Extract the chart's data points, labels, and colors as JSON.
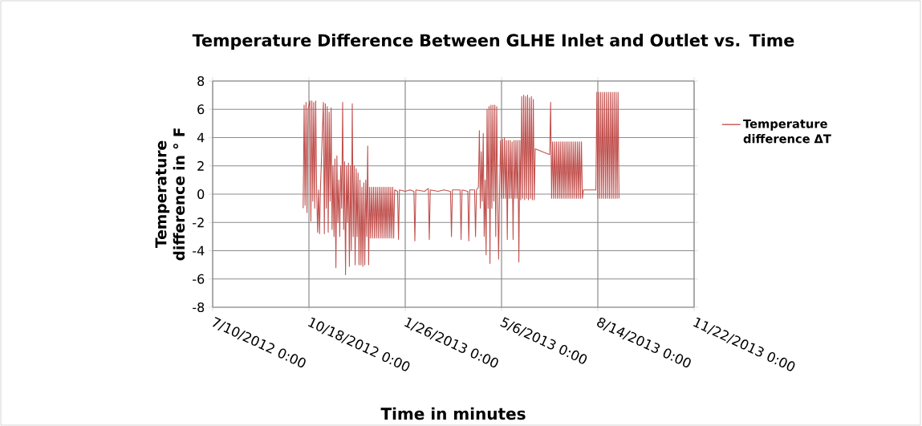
{
  "chart_data": {
    "type": "line",
    "title": "Temperature Difference Between GLHE Inlet and Outlet vs. Time",
    "xlabel": "Time in minutes",
    "ylabel": "Temperature difference in ° F",
    "xlim": [
      "2012-07-10",
      "2013-11-22"
    ],
    "xticks": [
      {
        "value": "2012-07-10",
        "label": "7/10/2012 0:00"
      },
      {
        "value": "2012-10-18",
        "label": "10/18/2012 0:00"
      },
      {
        "value": "2013-01-26",
        "label": "1/26/2013 0:00"
      },
      {
        "value": "2013-05-06",
        "label": "5/6/2013 0:00"
      },
      {
        "value": "2013-08-14",
        "label": "8/14/2013 0:00"
      },
      {
        "value": "2013-11-22",
        "label": "11/22/2013 0:00"
      }
    ],
    "ylim": [
      -8,
      8
    ],
    "yticks": [
      -8,
      -6,
      -4,
      -2,
      0,
      2,
      4,
      6,
      8
    ],
    "grid": true,
    "legend": "right",
    "marker": "none",
    "series": [
      {
        "name": "Temperature difference ΔT",
        "color": "#c0504d",
        "x": [
          "2012-10-12",
          "2012-10-13",
          "2012-10-14",
          "2012-10-15",
          "2012-10-16",
          "2012-10-17",
          "2012-10-19",
          "2012-10-20",
          "2012-10-21",
          "2012-10-22",
          "2012-10-23",
          "2012-10-24",
          "2012-10-25",
          "2012-10-26",
          "2012-10-27",
          "2012-10-28",
          "2012-10-29",
          "2012-10-30",
          "2012-11-02",
          "2012-11-03",
          "2012-11-04",
          "2012-11-05",
          "2012-11-06",
          "2012-11-07",
          "2012-11-08",
          "2012-11-09",
          "2012-11-10",
          "2012-11-11",
          "2012-11-12",
          "2012-11-13",
          "2012-11-14",
          "2012-11-15",
          "2012-11-16",
          "2012-11-17",
          "2012-11-18",
          "2012-11-19",
          "2012-11-20",
          "2012-11-21",
          "2012-11-22",
          "2012-11-23",
          "2012-11-24",
          "2012-11-25",
          "2012-11-26",
          "2012-11-27",
          "2012-11-28",
          "2012-11-29",
          "2012-11-30",
          "2012-12-01",
          "2012-12-02",
          "2012-12-03",
          "2012-12-04",
          "2012-12-05",
          "2012-12-06",
          "2012-12-07",
          "2012-12-08",
          "2012-12-09",
          "2012-12-10",
          "2012-12-11",
          "2012-12-12",
          "2012-12-13",
          "2012-12-14",
          "2012-12-15",
          "2012-12-16",
          "2012-12-17",
          "2012-12-18",
          "2012-12-19",
          "2012-12-20",
          "2012-12-21",
          "2012-12-22",
          "2012-12-23",
          "2012-12-24",
          "2012-12-25",
          "2012-12-26",
          "2012-12-27",
          "2012-12-28",
          "2012-12-29",
          "2012-12-30",
          "2012-12-31",
          "2013-01-01",
          "2013-01-02",
          "2013-01-03",
          "2013-01-04",
          "2013-01-05",
          "2013-01-06",
          "2013-01-07",
          "2013-01-08",
          "2013-01-09",
          "2013-01-10",
          "2013-01-11",
          "2013-01-12",
          "2013-01-13",
          "2013-01-14",
          "2013-01-15",
          "2013-01-18",
          "2013-01-19",
          "2013-01-20",
          "2013-01-26",
          "2013-01-31",
          "2013-02-04",
          "2013-02-05",
          "2013-02-06",
          "2013-02-15",
          "2013-02-19",
          "2013-02-20",
          "2013-02-21",
          "2013-03-01",
          "2013-03-07",
          "2013-03-14",
          "2013-03-15",
          "2013-03-16",
          "2013-03-24",
          "2013-03-25",
          "2013-03-26",
          "2013-04-01",
          "2013-04-02",
          "2013-04-03",
          "2013-04-08",
          "2013-04-09",
          "2013-04-10",
          "2013-04-12",
          "2013-04-13",
          "2013-04-14",
          "2013-04-15",
          "2013-04-16",
          "2013-04-17",
          "2013-04-18",
          "2013-04-19",
          "2013-04-20",
          "2013-04-21",
          "2013-04-22",
          "2013-04-23",
          "2013-04-24",
          "2013-04-25",
          "2013-04-26",
          "2013-04-27",
          "2013-04-28",
          "2013-04-29",
          "2013-04-30",
          "2013-05-01",
          "2013-05-02",
          "2013-05-03",
          "2013-05-04",
          "2013-05-05",
          "2013-05-06",
          "2013-05-07",
          "2013-05-08",
          "2013-05-09",
          "2013-05-10",
          "2013-05-11",
          "2013-05-12",
          "2013-05-13",
          "2013-05-14",
          "2013-05-15",
          "2013-05-16",
          "2013-05-17",
          "2013-05-18",
          "2013-05-19",
          "2013-05-20",
          "2013-05-21",
          "2013-05-22",
          "2013-05-23",
          "2013-05-24",
          "2013-05-25",
          "2013-05-26",
          "2013-05-27",
          "2013-05-28",
          "2013-05-29",
          "2013-05-30",
          "2013-05-31",
          "2013-06-01",
          "2013-06-02",
          "2013-06-03",
          "2013-06-04",
          "2013-06-05",
          "2013-06-06",
          "2013-06-07",
          "2013-06-08",
          "2013-06-09",
          "2013-06-10",
          "2013-06-25",
          "2013-06-26",
          "2013-06-27",
          "2013-06-28",
          "2013-06-29",
          "2013-06-30",
          "2013-07-01",
          "2013-07-02",
          "2013-07-03",
          "2013-07-04",
          "2013-07-05",
          "2013-07-06",
          "2013-07-07",
          "2013-07-08",
          "2013-07-09",
          "2013-07-10",
          "2013-07-11",
          "2013-07-12",
          "2013-07-13",
          "2013-07-14",
          "2013-07-15",
          "2013-07-16",
          "2013-07-17",
          "2013-07-18",
          "2013-07-19",
          "2013-07-20",
          "2013-07-21",
          "2013-07-22",
          "2013-07-23",
          "2013-07-24",
          "2013-07-25",
          "2013-07-26",
          "2013-07-27",
          "2013-07-28",
          "2013-07-29",
          "2013-07-30",
          "2013-08-12",
          "2013-08-13",
          "2013-08-14",
          "2013-08-15",
          "2013-08-16",
          "2013-08-17",
          "2013-08-18",
          "2013-08-19",
          "2013-08-20",
          "2013-08-21",
          "2013-08-22",
          "2013-08-23",
          "2013-08-24",
          "2013-08-25",
          "2013-08-26",
          "2013-08-27",
          "2013-08-28",
          "2013-08-29",
          "2013-08-30",
          "2013-08-31",
          "2013-09-01",
          "2013-09-02",
          "2013-09-03",
          "2013-09-04",
          "2013-09-05"
        ],
        "values": [
          -1.0,
          6.3,
          -0.8,
          6.5,
          -1.3,
          6.0,
          6.6,
          -1.9,
          6.6,
          -0.5,
          6.5,
          -1.0,
          6.6,
          0.2,
          -2.7,
          0.3,
          -2.8,
          0.5,
          6.5,
          -2.8,
          6.4,
          -1.0,
          6.2,
          -2.7,
          5.8,
          -0.5,
          6.1,
          -2.5,
          2.0,
          -3.0,
          2.5,
          -5.2,
          2.7,
          -2.0,
          1.0,
          -3.0,
          2.0,
          -1.0,
          6.5,
          -2.5,
          2.3,
          -5.7,
          2.0,
          -2.0,
          2.2,
          -5.1,
          2.0,
          -4.0,
          6.4,
          -3.0,
          2.0,
          -5.0,
          1.8,
          -3.0,
          1.5,
          -5.0,
          1.0,
          -5.0,
          0.5,
          -5.1,
          0.8,
          -5.0,
          1.0,
          -3.0,
          3.4,
          -5.0,
          0.5,
          -3.1,
          0.5,
          -3.1,
          0.5,
          -3.1,
          0.5,
          -3.1,
          0.5,
          -3.1,
          0.5,
          -3.1,
          0.5,
          -3.1,
          0.5,
          -3.1,
          0.5,
          -3.1,
          0.5,
          -3.1,
          0.5,
          -3.1,
          0.5,
          -3.1,
          0.5,
          -3.1,
          0.3,
          0.2,
          -3.2,
          0.3,
          0.2,
          0.3,
          0.2,
          -3.3,
          0.3,
          0.2,
          0.4,
          -3.2,
          0.3,
          0.2,
          0.3,
          0.2,
          -3.0,
          0.3,
          0.3,
          -3.2,
          0.3,
          0.2,
          -3.3,
          0.3,
          0.3,
          -3.0,
          0.3,
          0.5,
          4.5,
          -1.0,
          3.0,
          -0.5,
          4.3,
          -3.0,
          1.0,
          -4.3,
          6.0,
          -1.0,
          6.2,
          -4.9,
          6.3,
          -1.0,
          6.3,
          -0.5,
          6.3,
          -3.0,
          6.2,
          -0.5,
          -4.6,
          0.5,
          3.8,
          -0.3,
          3.9,
          -0.3,
          4.0,
          -0.3,
          3.8,
          -3.2,
          3.8,
          -0.3,
          3.8,
          -0.3,
          3.7,
          -3.2,
          3.8,
          -0.3,
          3.8,
          -0.3,
          3.8,
          -4.8,
          3.8,
          -0.4,
          6.9,
          -0.3,
          7.0,
          -0.4,
          6.9,
          -0.3,
          7.0,
          -0.4,
          6.8,
          -0.3,
          6.9,
          -0.4,
          6.7,
          -0.4,
          3.2,
          2.8,
          6.5,
          -0.3,
          3.7,
          -0.3,
          3.7,
          -0.3,
          3.7,
          -0.3,
          3.7,
          -0.3,
          3.7,
          -0.3,
          3.7,
          -0.3,
          3.7,
          -0.3,
          3.7,
          -0.3,
          3.7,
          -0.3,
          3.7,
          -0.3,
          3.7,
          -0.3,
          3.7,
          -0.3,
          3.7,
          -0.3,
          3.7,
          -0.3,
          3.7,
          -0.3,
          3.7,
          -0.3,
          0.3,
          0.3,
          7.2,
          -0.3,
          7.2,
          -0.3,
          7.2,
          -0.3,
          7.2,
          -0.3,
          7.2,
          -0.3,
          7.2,
          -0.3,
          7.2,
          -0.3,
          7.2,
          -0.3,
          7.2,
          -0.3,
          7.2,
          -0.3,
          7.2,
          -0.3,
          7.2,
          -0.3
        ]
      }
    ]
  }
}
